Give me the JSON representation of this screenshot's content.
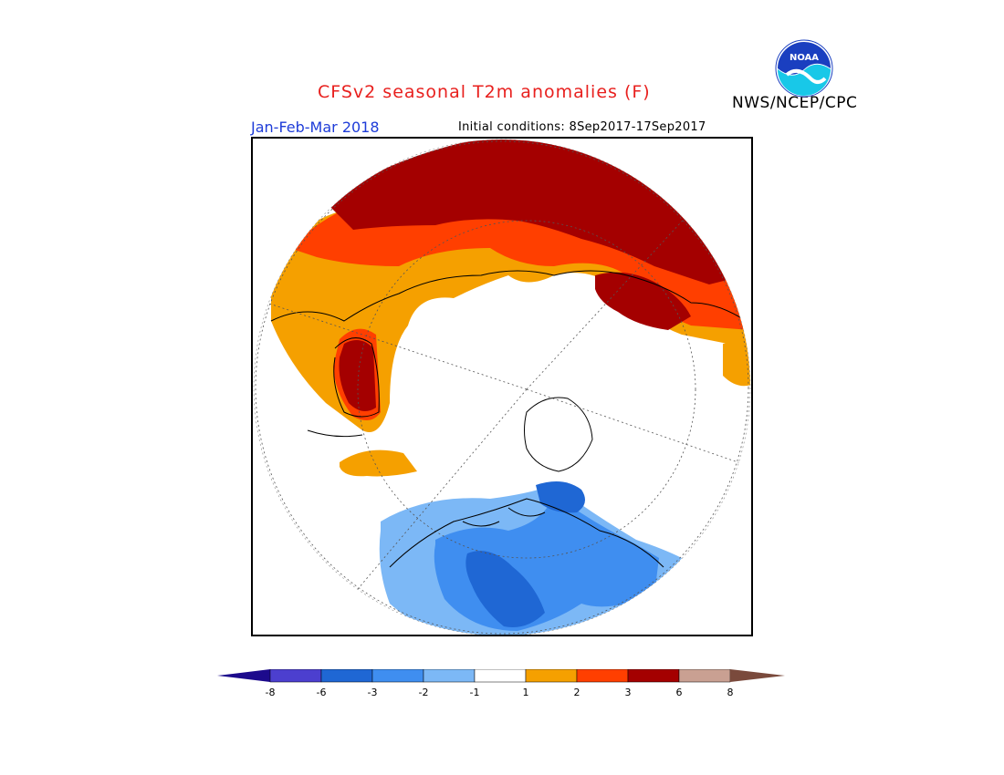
{
  "header": {
    "title": "CFSv2 seasonal T2m anomalies (F)",
    "agency": "NWS/NCEP/CPC",
    "season": "Jan-Feb-Mar 2018",
    "initial_conditions": "Initial conditions: 8Sep2017-17Sep2017",
    "logo_text": "NOAA"
  },
  "map": {
    "projection": "north polar stereographic",
    "variable": "2m temperature anomaly",
    "units": "F"
  },
  "legend": {
    "labels": [
      "-8",
      "-6",
      "-3",
      "-2",
      "-1",
      "1",
      "2",
      "3",
      "6",
      "8"
    ],
    "colors": [
      "#1c0a8c",
      "#4c3fcf",
      "#1f67d4",
      "#3f8ef0",
      "#7cb8f6",
      "#ffffff",
      "#f5a000",
      "#ff3f00",
      "#a40000",
      "#c9a092",
      "#7a4a3c"
    ]
  }
}
